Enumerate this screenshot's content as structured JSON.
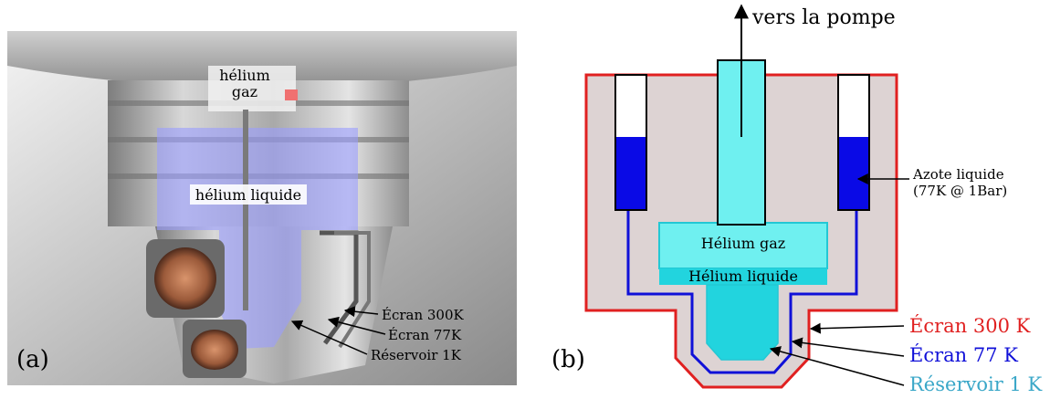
{
  "panel_a": {
    "tag": "(a)",
    "label_helium_gas_line1": "hélium",
    "label_helium_gas_line2": "gaz",
    "label_helium_liquid": "hélium liquide",
    "label_screen_300": "Écran 300K",
    "label_screen_77": "Écran 77K",
    "label_reservoir": "Réservoir 1K"
  },
  "panel_b": {
    "tag": "(b)",
    "label_pump": "vers la pompe",
    "label_nitrogen_line1": "Azote liquide",
    "label_nitrogen_line2": "(77K @ 1Bar)",
    "label_helium_gas": "Hélium gaz",
    "label_helium_liquid": "Hélium liquide",
    "label_screen_300": "Écran 300 K",
    "label_screen_77": "Écran 77 K",
    "label_reservoir": "Réservoir 1 K"
  },
  "colors": {
    "screen_300": "#e02020",
    "screen_77": "#1010d8",
    "reservoir_1k": "#3aa7c8",
    "helium_gas": "#6ff0f0",
    "helium_liquid": "#22d4de",
    "nitrogen": "#0a0ae6",
    "vacuum": "#ddd3d3",
    "photo_glow": "#9a9cff"
  }
}
